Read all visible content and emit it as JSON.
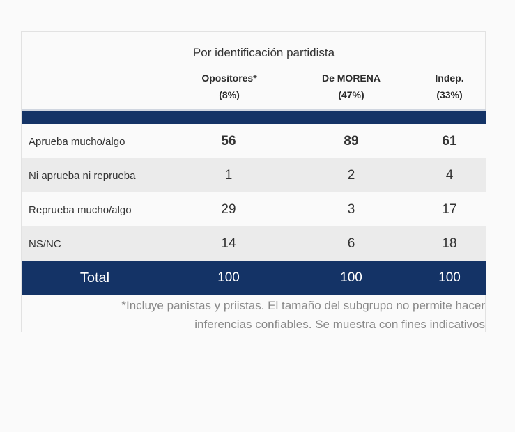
{
  "chart_data": {
    "type": "table",
    "title": "Por identificación partidista",
    "columns": [
      {
        "name": "Opositores*",
        "share": "(8%)"
      },
      {
        "name": "De MORENA",
        "share": "(47%)"
      },
      {
        "name": "Indep.",
        "share": "(33%)"
      }
    ],
    "rows": [
      {
        "label": "Aprueba mucho/algo",
        "values": [
          "56",
          "89",
          "61"
        ]
      },
      {
        "label": "Ni aprueba ni reprueba",
        "values": [
          "1",
          "2",
          "4"
        ]
      },
      {
        "label": "Reprueba mucho/algo",
        "values": [
          "29",
          "3",
          "17"
        ]
      },
      {
        "label": "NS/NC",
        "values": [
          "14",
          "6",
          "18"
        ]
      }
    ],
    "total": {
      "label": "Total",
      "values": [
        "100",
        "100",
        "100"
      ]
    },
    "footnote": [
      "*Incluye panistas y priistas. El tamaño del subgrupo no permite hacer",
      "inferencias confiables. Se muestra con fines indicativos"
    ]
  },
  "colors": {
    "header_band": "#143366",
    "alt_row": "#ebebeb"
  }
}
